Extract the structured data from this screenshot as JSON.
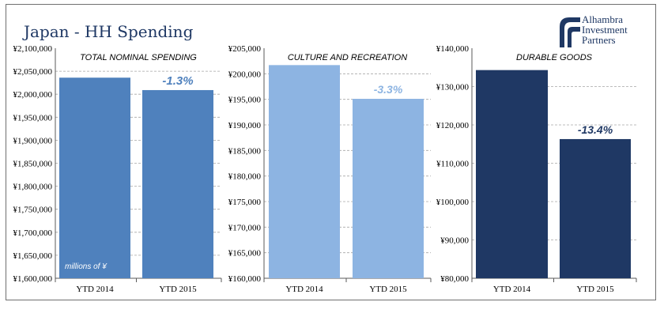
{
  "header": {
    "title": "Japan - HH Spending",
    "logo_lines": [
      "Alhambra",
      "Investment",
      "Partners"
    ],
    "logo_icon": "alhambra-logo-icon"
  },
  "colors": {
    "panel1": "#4f81bd",
    "panel2": "#8db4e2",
    "panel3": "#1f3864",
    "label1": "#4f81bd",
    "label2": "#8db4e2",
    "label3": "#1f3864",
    "grid": "#a6a6a6",
    "axis": "#595959",
    "logo": "#1f3864"
  },
  "chart_data": [
    {
      "type": "bar",
      "title": "TOTAL NOMINAL SPENDING",
      "categories": [
        "YTD 2014",
        "YTD 2015"
      ],
      "values": [
        2036000,
        2009000
      ],
      "ylim": [
        1600000,
        2100000
      ],
      "yticks": [
        1600000,
        1650000,
        1700000,
        1750000,
        1800000,
        1850000,
        1900000,
        1950000,
        2000000,
        2050000,
        2100000
      ],
      "ytick_labels": [
        "¥1,600,000",
        "¥1,650,000",
        "¥1,700,000",
        "¥1,750,000",
        "¥1,800,000",
        "¥1,850,000",
        "¥1,900,000",
        "¥1,950,000",
        "¥2,000,000",
        "¥2,050,000",
        "¥2,100,000"
      ],
      "annotation": "-1.3%",
      "annotation_index": 1,
      "note": "millions of ¥",
      "grid": true
    },
    {
      "type": "bar",
      "title": "CULTURE AND RECREATION",
      "categories": [
        "YTD 2014",
        "YTD 2015"
      ],
      "values": [
        201700,
        195100
      ],
      "ylim": [
        160000,
        205000
      ],
      "yticks": [
        160000,
        165000,
        170000,
        175000,
        180000,
        185000,
        190000,
        195000,
        200000,
        205000
      ],
      "ytick_labels": [
        "¥160,000",
        "¥165,000",
        "¥170,000",
        "¥175,000",
        "¥180,000",
        "¥185,000",
        "¥190,000",
        "¥195,000",
        "¥200,000",
        "¥205,000"
      ],
      "annotation": "-3.3%",
      "annotation_index": 1,
      "grid": true
    },
    {
      "type": "bar",
      "title": "DURABLE GOODS",
      "categories": [
        "YTD 2014",
        "YTD 2015"
      ],
      "values": [
        134300,
        116300
      ],
      "ylim": [
        80000,
        140000
      ],
      "yticks": [
        80000,
        90000,
        100000,
        110000,
        120000,
        130000,
        140000
      ],
      "ytick_labels": [
        "¥80,000",
        "¥90,000",
        "¥100,000",
        "¥110,000",
        "¥120,000",
        "¥130,000",
        "¥140,000"
      ],
      "annotation": "-13.4%",
      "annotation_index": 1,
      "grid": true
    }
  ]
}
